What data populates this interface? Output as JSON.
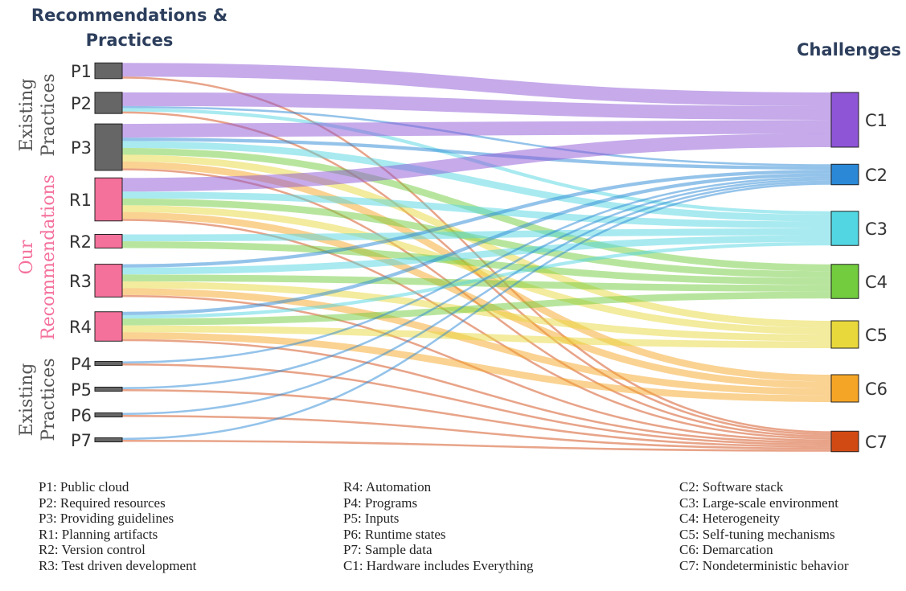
{
  "headers": {
    "left": "Recommendations & Practices",
    "right": "Challenges"
  },
  "side_labels": {
    "top": [
      "Existing",
      "Practices"
    ],
    "middle": [
      "Our",
      "Recommendations"
    ],
    "bottom": [
      "Existing",
      "Practices"
    ]
  },
  "colors": {
    "practice_node": "#666666",
    "recommendation_node": "#f4719b",
    "recommendation_text": "#f4719b",
    "side_text": "#555555"
  },
  "sources": [
    {
      "id": "P1",
      "group": "practice"
    },
    {
      "id": "P2",
      "group": "practice"
    },
    {
      "id": "P3",
      "group": "practice"
    },
    {
      "id": "R1",
      "group": "recommendation"
    },
    {
      "id": "R2",
      "group": "recommendation"
    },
    {
      "id": "R3",
      "group": "recommendation"
    },
    {
      "id": "R4",
      "group": "recommendation"
    },
    {
      "id": "P4",
      "group": "practice"
    },
    {
      "id": "P5",
      "group": "practice"
    },
    {
      "id": "P6",
      "group": "practice"
    },
    {
      "id": "P7",
      "group": "practice"
    }
  ],
  "targets": [
    {
      "id": "C1",
      "color": "#8e55d6"
    },
    {
      "id": "C2",
      "color": "#2a88d6"
    },
    {
      "id": "C3",
      "color": "#52d6e2"
    },
    {
      "id": "C4",
      "color": "#72cc3e"
    },
    {
      "id": "C5",
      "color": "#e8d83c"
    },
    {
      "id": "C6",
      "color": "#f5a526"
    },
    {
      "id": "C7",
      "color": "#d14a14"
    }
  ],
  "links": [
    {
      "source": "P1",
      "target": "C1",
      "value": 1
    },
    {
      "source": "P1",
      "target": "C7",
      "value": 0.15
    },
    {
      "source": "P2",
      "target": "C1",
      "value": 1
    },
    {
      "source": "P2",
      "target": "C3",
      "value": 0.25
    },
    {
      "source": "P2",
      "target": "C2",
      "value": 0.15
    },
    {
      "source": "P2",
      "target": "C7",
      "value": 0.15
    },
    {
      "source": "P3",
      "target": "C1",
      "value": 1
    },
    {
      "source": "P3",
      "target": "C3",
      "value": 0.5
    },
    {
      "source": "P3",
      "target": "C2",
      "value": 0.25
    },
    {
      "source": "P3",
      "target": "C4",
      "value": 0.5
    },
    {
      "source": "P3",
      "target": "C5",
      "value": 0.5
    },
    {
      "source": "P3",
      "target": "C6",
      "value": 0.5
    },
    {
      "source": "P3",
      "target": "C7",
      "value": 0.15
    },
    {
      "source": "R1",
      "target": "C1",
      "value": 1
    },
    {
      "source": "R1",
      "target": "C3",
      "value": 0.5
    },
    {
      "source": "R1",
      "target": "C4",
      "value": 0.5
    },
    {
      "source": "R1",
      "target": "C5",
      "value": 0.5
    },
    {
      "source": "R1",
      "target": "C6",
      "value": 0.5
    },
    {
      "source": "R1",
      "target": "C7",
      "value": 0.15
    },
    {
      "source": "R2",
      "target": "C3",
      "value": 0.5
    },
    {
      "source": "R2",
      "target": "C4",
      "value": 0.5
    },
    {
      "source": "R3",
      "target": "C2",
      "value": 0.25
    },
    {
      "source": "R3",
      "target": "C3",
      "value": 0.5
    },
    {
      "source": "R3",
      "target": "C4",
      "value": 0.5
    },
    {
      "source": "R3",
      "target": "C5",
      "value": 0.5
    },
    {
      "source": "R3",
      "target": "C6",
      "value": 0.5
    },
    {
      "source": "R3",
      "target": "C7",
      "value": 0.15
    },
    {
      "source": "R4",
      "target": "C2",
      "value": 0.25
    },
    {
      "source": "R4",
      "target": "C4",
      "value": 0.5
    },
    {
      "source": "R4",
      "target": "C3",
      "value": 0.25
    },
    {
      "source": "R4",
      "target": "C5",
      "value": 0.5
    },
    {
      "source": "R4",
      "target": "C6",
      "value": 0.5
    },
    {
      "source": "R4",
      "target": "C7",
      "value": 0.15
    },
    {
      "source": "P4",
      "target": "C2",
      "value": 0.15
    },
    {
      "source": "P4",
      "target": "C7",
      "value": 0.15
    },
    {
      "source": "P5",
      "target": "C2",
      "value": 0.15
    },
    {
      "source": "P5",
      "target": "C7",
      "value": 0.15
    },
    {
      "source": "P6",
      "target": "C2",
      "value": 0.15
    },
    {
      "source": "P6",
      "target": "C7",
      "value": 0.15
    },
    {
      "source": "P7",
      "target": "C2",
      "value": 0.15
    },
    {
      "source": "P7",
      "target": "C7",
      "value": 0.15
    }
  ],
  "legend": [
    [
      "P1: Public cloud",
      "P2: Required resources",
      "P3: Providing guidelines",
      "R1: Planning artifacts",
      "R2: Version control",
      "R3: Test driven development"
    ],
    [
      "R4: Automation",
      "P4: Programs",
      "P5: Inputs",
      "P6: Runtime states",
      "P7: Sample data",
      "C1: Hardware includes Everything"
    ],
    [
      "C2: Software stack",
      "C3: Large-scale environment",
      "C4: Heterogeneity",
      "C5: Self-tuning mechanisms",
      "C6: Demarcation",
      "C7: Nondeterministic behavior"
    ]
  ]
}
